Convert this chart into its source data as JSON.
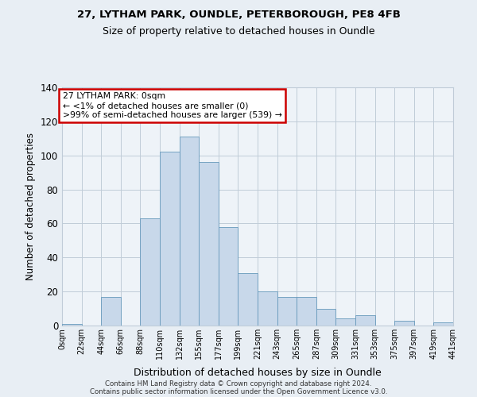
{
  "title1": "27, LYTHAM PARK, OUNDLE, PETERBOROUGH, PE8 4FB",
  "title2": "Size of property relative to detached houses in Oundle",
  "xlabel": "Distribution of detached houses by size in Oundle",
  "ylabel": "Number of detached properties",
  "bar_vals": [
    1,
    0,
    17,
    0,
    63,
    102,
    111,
    96,
    58,
    31,
    20,
    17,
    17,
    10,
    4,
    6,
    0,
    3,
    0,
    2
  ],
  "tick_labels": [
    "0sqm",
    "22sqm",
    "44sqm",
    "66sqm",
    "88sqm",
    "110sqm",
    "132sqm",
    "155sqm",
    "177sqm",
    "199sqm",
    "221sqm",
    "243sqm",
    "265sqm",
    "287sqm",
    "309sqm",
    "331sqm",
    "353sqm",
    "375sqm",
    "397sqm",
    "419sqm",
    "441sqm"
  ],
  "bar_color": "#c8d8ea",
  "bar_edge_color": "#6699bb",
  "ylim": [
    0,
    140
  ],
  "yticks": [
    0,
    20,
    40,
    60,
    80,
    100,
    120,
    140
  ],
  "annotation_title": "27 LYTHAM PARK: 0sqm",
  "annotation_line1": "← <1% of detached houses are smaller (0)",
  "annotation_line2": ">99% of semi-detached houses are larger (539) →",
  "annotation_box_color": "#ffffff",
  "annotation_box_edge_color": "#cc0000",
  "footer1": "Contains HM Land Registry data © Crown copyright and database right 2024.",
  "footer2": "Contains public sector information licensed under the Open Government Licence v3.0.",
  "background_color": "#e8eef4",
  "plot_background_color": "#eef3f8",
  "grid_color": "#c0ccd8"
}
